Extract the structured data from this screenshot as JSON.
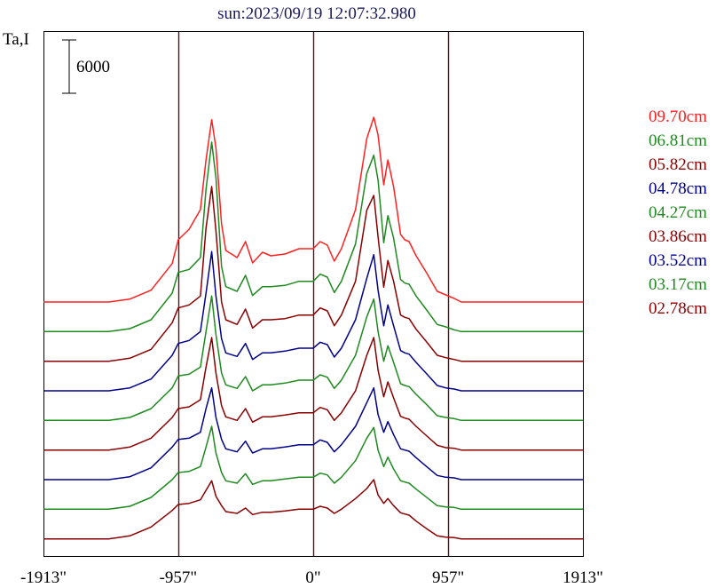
{
  "chart_data": {
    "type": "line",
    "title": "sun:2023/09/19 12:07:32.980",
    "ylabel": "Ta,I",
    "xlabel": "",
    "x_unit": "arcsec",
    "xlim": [
      -1913,
      1913
    ],
    "x_ticks": [
      {
        "value": -1913,
        "label": "-1913\""
      },
      {
        "value": -957,
        "label": "-957\""
      },
      {
        "value": 0,
        "label": "0\""
      },
      {
        "value": 957,
        "label": "957\""
      },
      {
        "value": 1913,
        "label": "1913\""
      }
    ],
    "vertical_lines": [
      -957,
      0,
      957
    ],
    "scale_bar": {
      "label": "6000",
      "value": 6000
    },
    "grid": false,
    "legend_position": "right",
    "line_colors": {
      "red": "#ff2020",
      "green": "#1f8a1f",
      "maroon": "#8b0000",
      "blue": "#00008b",
      "frame": "#000000",
      "marker": "#5c1414",
      "title": "#1a1a5e"
    },
    "series": [
      {
        "name": "09.70cm",
        "color": "#ff2020",
        "baseline": 42000,
        "x": [
          -1913,
          -1450,
          -1300,
          -1150,
          -1000,
          -957,
          -880,
          -800,
          -760,
          -720,
          -690,
          -650,
          -620,
          -540,
          -480,
          -430,
          -360,
          -300,
          -200,
          -100,
          0,
          50,
          100,
          150,
          200,
          300,
          380,
          430,
          460,
          500,
          530,
          570,
          620,
          650,
          680,
          730,
          800,
          880,
          940,
          1000,
          1050,
          1150,
          1300,
          1400,
          1913
        ],
        "values": [
          0,
          0,
          500,
          2000,
          6500,
          10500,
          12300,
          15600,
          24000,
          30800,
          26000,
          13200,
          8700,
          7500,
          10200,
          6600,
          8400,
          7800,
          8100,
          9000,
          9000,
          10200,
          9600,
          6900,
          9000,
          15600,
          27600,
          31200,
          28200,
          19800,
          24000,
          19500,
          11400,
          10500,
          10200,
          7800,
          5100,
          1800,
          1200,
          600,
          0,
          0,
          0,
          0,
          0
        ]
      },
      {
        "name": "06.81cm",
        "color": "#1f8a1f",
        "baseline": 37000,
        "x": [
          -1913,
          -1450,
          -1300,
          -1150,
          -1000,
          -957,
          -880,
          -800,
          -760,
          -720,
          -690,
          -650,
          -620,
          -540,
          -480,
          -430,
          -360,
          -300,
          -200,
          -100,
          0,
          50,
          100,
          150,
          200,
          300,
          380,
          430,
          460,
          500,
          530,
          570,
          620,
          650,
          680,
          730,
          800,
          880,
          940,
          1000,
          1050,
          1150,
          1300,
          1400,
          1913
        ],
        "values": [
          0,
          0,
          500,
          2000,
          6500,
          10000,
          10500,
          12500,
          24000,
          32000,
          26000,
          11000,
          7600,
          6800,
          9500,
          6100,
          7600,
          7600,
          7800,
          8500,
          8500,
          9700,
          9200,
          6600,
          8500,
          14800,
          26700,
          29800,
          25600,
          15000,
          19600,
          15800,
          8800,
          8200,
          8000,
          6000,
          3800,
          1200,
          800,
          300,
          0,
          0,
          0,
          0,
          0
        ]
      },
      {
        "name": "05.82cm",
        "color": "#8b0000",
        "baseline": 32000,
        "x": [
          -1913,
          -1450,
          -1300,
          -1150,
          -1000,
          -957,
          -880,
          -800,
          -760,
          -720,
          -690,
          -650,
          -620,
          -540,
          -480,
          -430,
          -360,
          -300,
          -200,
          -100,
          0,
          50,
          100,
          150,
          200,
          300,
          380,
          430,
          460,
          500,
          530,
          570,
          620,
          650,
          680,
          730,
          800,
          880,
          940,
          1000,
          1050,
          1150,
          1300,
          1400,
          1913
        ],
        "values": [
          0,
          0,
          500,
          2000,
          6500,
          9000,
          9500,
          11000,
          22500,
          29500,
          22000,
          10000,
          7000,
          6200,
          8800,
          5600,
          7000,
          7000,
          7200,
          7800,
          7800,
          9000,
          8500,
          6000,
          7800,
          13500,
          25500,
          28000,
          21000,
          12500,
          17000,
          13500,
          7800,
          7400,
          7200,
          5400,
          3400,
          1000,
          600,
          300,
          0,
          0,
          0,
          0,
          0
        ]
      },
      {
        "name": "04.78cm",
        "color": "#00008b",
        "baseline": 27000,
        "x": [
          -1913,
          -1450,
          -1300,
          -1150,
          -1000,
          -957,
          -880,
          -800,
          -760,
          -720,
          -690,
          -650,
          -620,
          -540,
          -480,
          -430,
          -360,
          -300,
          -200,
          -100,
          0,
          50,
          100,
          150,
          200,
          300,
          380,
          430,
          460,
          500,
          530,
          570,
          620,
          650,
          680,
          730,
          800,
          880,
          940,
          1000,
          1050,
          1150,
          1300,
          1400,
          1913
        ],
        "values": [
          0,
          0,
          500,
          2000,
          6000,
          8000,
          8500,
          10000,
          16500,
          23500,
          16000,
          8800,
          6400,
          5800,
          8000,
          5300,
          6400,
          6400,
          6700,
          7200,
          7200,
          8200,
          7800,
          5700,
          7200,
          12000,
          19000,
          23000,
          17000,
          11000,
          14500,
          11000,
          6800,
          6400,
          6200,
          4800,
          3000,
          900,
          500,
          300,
          0,
          0,
          0,
          0,
          0
        ]
      },
      {
        "name": "04.27cm",
        "color": "#1f8a1f",
        "baseline": 22000,
        "x": [
          -1913,
          -1450,
          -1300,
          -1150,
          -1000,
          -957,
          -880,
          -800,
          -760,
          -720,
          -690,
          -650,
          -620,
          -540,
          -480,
          -430,
          -360,
          -300,
          -200,
          -100,
          0,
          50,
          100,
          150,
          200,
          300,
          380,
          430,
          460,
          500,
          530,
          570,
          620,
          650,
          680,
          730,
          800,
          880,
          940,
          1000,
          1050,
          1150,
          1300,
          1400,
          1913
        ],
        "values": [
          0,
          0,
          500,
          2000,
          5500,
          7500,
          7800,
          9000,
          15000,
          21000,
          14500,
          8000,
          6000,
          5400,
          7400,
          5000,
          6000,
          6000,
          6300,
          6800,
          6800,
          7700,
          7300,
          5400,
          6800,
          11000,
          17500,
          20500,
          15000,
          10000,
          12600,
          9800,
          6200,
          5900,
          5700,
          4400,
          2800,
          800,
          500,
          300,
          0,
          0,
          0,
          0,
          0
        ]
      },
      {
        "name": "03.86cm",
        "color": "#8b0000",
        "baseline": 17000,
        "x": [
          -1913,
          -1450,
          -1300,
          -1150,
          -1000,
          -957,
          -880,
          -800,
          -760,
          -720,
          -690,
          -650,
          -620,
          -540,
          -480,
          -430,
          -360,
          -300,
          -200,
          -100,
          0,
          50,
          100,
          150,
          200,
          300,
          380,
          430,
          460,
          500,
          530,
          570,
          620,
          650,
          680,
          730,
          800,
          880,
          940,
          1000,
          1050,
          1150,
          1300,
          1400,
          1913
        ],
        "values": [
          0,
          0,
          500,
          2000,
          5500,
          7000,
          7300,
          8500,
          14000,
          19000,
          13000,
          7500,
          5600,
          5000,
          7000,
          4700,
          5600,
          5600,
          5900,
          6300,
          6300,
          7200,
          6800,
          5000,
          6300,
          10000,
          16000,
          19000,
          13500,
          9000,
          11500,
          8800,
          5700,
          5400,
          5200,
          4000,
          2500,
          800,
          400,
          300,
          0,
          0,
          0,
          0,
          0
        ]
      },
      {
        "name": "03.52cm",
        "color": "#00008b",
        "baseline": 12000,
        "x": [
          -1913,
          -1450,
          -1300,
          -1150,
          -1000,
          -957,
          -880,
          -800,
          -760,
          -720,
          -690,
          -650,
          -620,
          -540,
          -480,
          -430,
          -360,
          -300,
          -200,
          -100,
          0,
          50,
          100,
          150,
          200,
          300,
          380,
          430,
          460,
          500,
          530,
          570,
          620,
          650,
          680,
          730,
          800,
          880,
          940,
          1000,
          1050,
          1150,
          1300,
          1400,
          1913
        ],
        "values": [
          0,
          0,
          500,
          2000,
          5500,
          6800,
          7000,
          8000,
          12000,
          15500,
          10500,
          6800,
          5200,
          4700,
          6500,
          4500,
          5200,
          5200,
          5500,
          5900,
          5900,
          6700,
          6300,
          4700,
          5900,
          9000,
          13000,
          15500,
          11000,
          8000,
          9800,
          7600,
          5200,
          5000,
          4800,
          3700,
          2300,
          700,
          400,
          300,
          0,
          0,
          0,
          0,
          0
        ]
      },
      {
        "name": "03.17cm",
        "color": "#1f8a1f",
        "baseline": 7000,
        "x": [
          -1913,
          -1450,
          -1300,
          -1150,
          -1000,
          -957,
          -880,
          -800,
          -760,
          -720,
          -690,
          -650,
          -620,
          -540,
          -480,
          -430,
          -360,
          -300,
          -200,
          -100,
          0,
          50,
          100,
          150,
          200,
          300,
          380,
          430,
          460,
          500,
          530,
          570,
          620,
          650,
          680,
          730,
          800,
          880,
          940,
          1000,
          1050,
          1150,
          1300,
          1400,
          1913
        ],
        "values": [
          0,
          0,
          500,
          2000,
          5000,
          6200,
          6400,
          7200,
          10500,
          14000,
          9500,
          6200,
          4800,
          4400,
          6000,
          4200,
          4800,
          4800,
          5100,
          5400,
          5400,
          6100,
          5800,
          4400,
          5400,
          8200,
          12000,
          13800,
          10000,
          7200,
          8800,
          6800,
          4800,
          4600,
          4400,
          3400,
          2100,
          600,
          400,
          300,
          0,
          0,
          0,
          0,
          0
        ]
      },
      {
        "name": "02.78cm",
        "color": "#8b0000",
        "baseline": 2000,
        "x": [
          -1913,
          -1450,
          -1300,
          -1150,
          -1000,
          -957,
          -880,
          -800,
          -760,
          -720,
          -690,
          -650,
          -620,
          -540,
          -480,
          -430,
          -360,
          -300,
          -200,
          -100,
          0,
          50,
          100,
          150,
          200,
          300,
          380,
          430,
          460,
          500,
          530,
          570,
          620,
          650,
          680,
          730,
          800,
          880,
          940,
          1000,
          1050,
          1150,
          1300,
          1400,
          1913
        ],
        "values": [
          0,
          0,
          500,
          2000,
          4800,
          5800,
          6000,
          6600,
          8200,
          9800,
          7200,
          5600,
          4600,
          4300,
          5200,
          4100,
          4500,
          4500,
          4700,
          5000,
          5000,
          5500,
          5200,
          4300,
          5000,
          6800,
          8500,
          10000,
          7400,
          6000,
          6800,
          5600,
          4400,
          4200,
          4000,
          3000,
          1800,
          500,
          300,
          200,
          0,
          0,
          0,
          0,
          0
        ]
      }
    ]
  }
}
